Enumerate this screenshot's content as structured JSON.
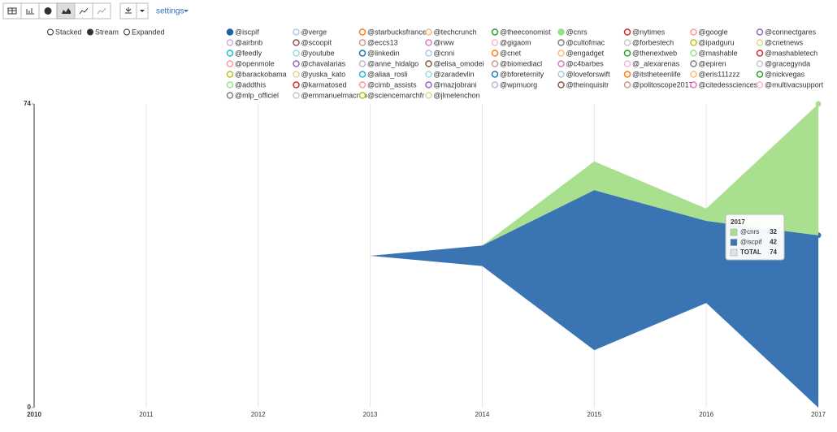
{
  "ui": {
    "settings": "settings",
    "modes": [
      "Stacked",
      "Stream",
      "Expanded"
    ]
  },
  "chart_data": {
    "type": "stream",
    "x": [
      2010,
      2011,
      2012,
      2013,
      2014,
      2015,
      2016,
      2017
    ],
    "xlim": [
      2010,
      2017
    ],
    "xticks": [
      2010,
      2011,
      2012,
      2013,
      2014,
      2015,
      2016,
      2017
    ],
    "ylim": [
      0,
      74
    ],
    "yticks": [
      0,
      74
    ],
    "grid": true,
    "series": [
      {
        "name": "@iscpif",
        "color": "#3a74b2",
        "values": [
          0,
          0,
          0,
          0,
          5,
          39,
          20,
          42
        ]
      },
      {
        "name": "@cnrs",
        "color": "#a8e08f",
        "values": [
          0,
          0,
          0,
          0,
          0,
          7,
          3,
          32
        ]
      }
    ],
    "tooltip": {
      "total_label": "TOTAL",
      "total": 74
    },
    "legend": [
      {
        "name": "@iscpif",
        "color": "#1f5fa8"
      },
      {
        "name": "@verge",
        "color": "#aec7e8"
      },
      {
        "name": "@starbucksfrance",
        "color": "#ff7f0e"
      },
      {
        "name": "@techcrunch",
        "color": "#ffbb78"
      },
      {
        "name": "@theeconomist",
        "color": "#2ca02c"
      },
      {
        "name": "@cnrs",
        "color": "#98df8a"
      },
      {
        "name": "@nytimes",
        "color": "#d62728"
      },
      {
        "name": "@google",
        "color": "#ff9896"
      },
      {
        "name": "@connectgares",
        "color": "#9467bd"
      },
      {
        "name": "@airbnb",
        "color": "#c5b0d5"
      },
      {
        "name": "@scoopit",
        "color": "#8c564b"
      },
      {
        "name": "@eccs13",
        "color": "#c49c94"
      },
      {
        "name": "@rww",
        "color": "#e377c2"
      },
      {
        "name": "@gigaom",
        "color": "#f7b6d2"
      },
      {
        "name": "@cultofmac",
        "color": "#7f7f7f"
      },
      {
        "name": "@forbestech",
        "color": "#c7c7c7"
      },
      {
        "name": "@ipadguru",
        "color": "#bcbd22"
      },
      {
        "name": "@cnetnews",
        "color": "#dbdb8d"
      },
      {
        "name": "@feedly",
        "color": "#17becf"
      },
      {
        "name": "@youtube",
        "color": "#9edae5"
      },
      {
        "name": "@linkedin",
        "color": "#1f77b4"
      },
      {
        "name": "@cnni",
        "color": "#aec7e8"
      },
      {
        "name": "@cnet",
        "color": "#ff7f0e"
      },
      {
        "name": "@engadget",
        "color": "#ffbb78"
      },
      {
        "name": "@thenextweb",
        "color": "#2ca02c"
      },
      {
        "name": "@mashable",
        "color": "#98df8a"
      },
      {
        "name": "@mashabletech",
        "color": "#d62728"
      },
      {
        "name": "@openmole",
        "color": "#ff9896"
      },
      {
        "name": "@chavalarias",
        "color": "#9467bd"
      },
      {
        "name": "@anne_hidalgo",
        "color": "#c5b0d5"
      },
      {
        "name": "@elisa_omodei",
        "color": "#8c564b"
      },
      {
        "name": "@biomediacl",
        "color": "#c49c94"
      },
      {
        "name": "@c4barbes",
        "color": "#e377c2"
      },
      {
        "name": "@_alexarenas",
        "color": "#f7b6d2"
      },
      {
        "name": "@epiren",
        "color": "#7f7f7f"
      },
      {
        "name": "@gracegynda",
        "color": "#c7c7c7"
      },
      {
        "name": "@barackobama",
        "color": "#bcbd22"
      },
      {
        "name": "@yuska_kato",
        "color": "#dbdb8d"
      },
      {
        "name": "@aliaa_rosli",
        "color": "#17becf"
      },
      {
        "name": "@zaradevlin",
        "color": "#9edae5"
      },
      {
        "name": "@bforeternity",
        "color": "#1f77b4"
      },
      {
        "name": "@loveforswift",
        "color": "#aec7e8"
      },
      {
        "name": "@itstheteenlife",
        "color": "#ff7f0e"
      },
      {
        "name": "@eris111zzz",
        "color": "#ffbb78"
      },
      {
        "name": "@nickvegas",
        "color": "#2ca02c"
      },
      {
        "name": "@addthis",
        "color": "#98df8a"
      },
      {
        "name": "@karmatosed",
        "color": "#d62728"
      },
      {
        "name": "@cimb_assists",
        "color": "#ff9896"
      },
      {
        "name": "@mazjobrani",
        "color": "#9467bd"
      },
      {
        "name": "@wpmuorg",
        "color": "#c5b0d5"
      },
      {
        "name": "@theinquisitr",
        "color": "#8c564b"
      },
      {
        "name": "@politoscope2017",
        "color": "#c49c94"
      },
      {
        "name": "@citedessciences",
        "color": "#e377c2"
      },
      {
        "name": "@multivacsupport",
        "color": "#f7b6d2"
      },
      {
        "name": "@mlp_officiel",
        "color": "#7f7f7f"
      },
      {
        "name": "@emmanuelmacron",
        "color": "#c7c7c7"
      },
      {
        "name": "@sciencemarchfr",
        "color": "#bcbd22"
      },
      {
        "name": "@jlmelenchon",
        "color": "#dbdb8d"
      }
    ]
  }
}
